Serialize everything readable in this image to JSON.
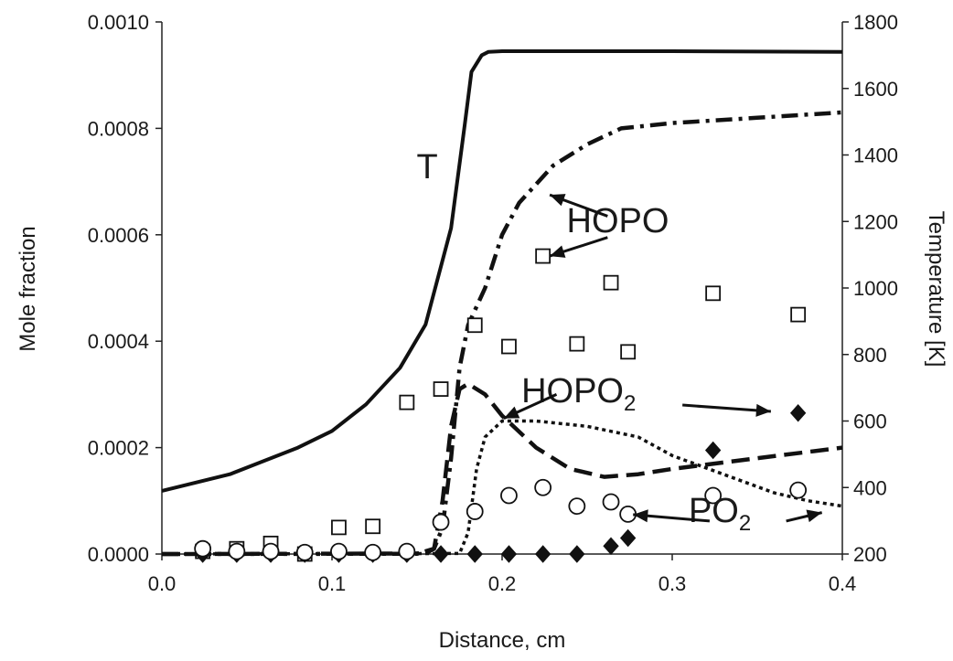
{
  "chart_data": {
    "type": "line",
    "title": "",
    "xlabel": "Distance, cm",
    "ylabel": "Mole fraction",
    "y2label": "Temperature [K]",
    "xlim": [
      0,
      0.4
    ],
    "ylim": [
      0,
      0.001
    ],
    "y2lim": [
      200,
      1800
    ],
    "x_ticks": [
      "0.0",
      "0.1",
      "0.2",
      "0.3",
      "0.4"
    ],
    "y_ticks": [
      "0.0000",
      "0.0002",
      "0.0004",
      "0.0006",
      "0.0008",
      "0.0010"
    ],
    "y2_ticks": [
      "200",
      "400",
      "600",
      "800",
      "1000",
      "1200",
      "1400",
      "1600",
      "1800"
    ],
    "grid": false,
    "legend": "none",
    "series": [
      {
        "kind": "line",
        "style": "solid",
        "axis": "right",
        "points": [
          [
            0,
            390
          ],
          [
            0.04,
            440
          ],
          [
            0.08,
            520
          ],
          [
            0.1,
            570
          ],
          [
            0.12,
            650
          ],
          [
            0.14,
            760
          ],
          [
            0.155,
            890
          ],
          [
            0.17,
            1180
          ],
          [
            0.178,
            1490
          ],
          [
            0.182,
            1650
          ],
          [
            0.188,
            1700
          ],
          [
            0.192,
            1710
          ],
          [
            0.2,
            1712
          ],
          [
            0.3,
            1712
          ],
          [
            0.4,
            1710
          ]
        ]
      },
      {
        "kind": "line",
        "style": "dash-dot",
        "axis": "left",
        "points": [
          [
            0,
            0
          ],
          [
            0.15,
            5e-07
          ],
          [
            0.16,
            1e-05
          ],
          [
            0.165,
            5e-05
          ],
          [
            0.17,
            0.00018
          ],
          [
            0.175,
            0.00035
          ],
          [
            0.18,
            0.00043
          ],
          [
            0.19,
            0.0005
          ],
          [
            0.2,
            0.0006
          ],
          [
            0.21,
            0.00066
          ],
          [
            0.23,
            0.00073
          ],
          [
            0.25,
            0.00077
          ],
          [
            0.27,
            0.0008
          ],
          [
            0.3,
            0.00081
          ],
          [
            0.35,
            0.00082
          ],
          [
            0.4,
            0.00083
          ]
        ]
      },
      {
        "kind": "line",
        "style": "dashed",
        "axis": "left",
        "points": [
          [
            0,
            0
          ],
          [
            0.155,
            1e-06
          ],
          [
            0.16,
            1e-05
          ],
          [
            0.165,
            0.0001
          ],
          [
            0.17,
            0.00024
          ],
          [
            0.175,
            0.00031
          ],
          [
            0.18,
            0.00032
          ],
          [
            0.19,
            0.0003
          ],
          [
            0.2,
            0.00026
          ],
          [
            0.22,
            0.0002
          ],
          [
            0.24,
            0.00016
          ],
          [
            0.26,
            0.000145
          ],
          [
            0.28,
            0.00015
          ],
          [
            0.3,
            0.00016
          ],
          [
            0.35,
            0.00018
          ],
          [
            0.4,
            0.0002
          ]
        ]
      },
      {
        "kind": "line",
        "style": "dotted",
        "axis": "left",
        "points": [
          [
            0,
            0
          ],
          [
            0.175,
            1e-06
          ],
          [
            0.18,
            4e-05
          ],
          [
            0.185,
            0.00016
          ],
          [
            0.19,
            0.00022
          ],
          [
            0.2,
            0.00025
          ],
          [
            0.22,
            0.00025
          ],
          [
            0.25,
            0.00024
          ],
          [
            0.28,
            0.00022
          ],
          [
            0.3,
            0.000185
          ],
          [
            0.33,
            0.00015
          ],
          [
            0.36,
            0.000115
          ],
          [
            0.38,
            0.0001
          ],
          [
            0.4,
            9e-05
          ]
        ]
      },
      {
        "kind": "scatter",
        "marker": "open-square",
        "axis": "left",
        "points": [
          [
            0.024,
            5e-06
          ],
          [
            0.044,
            1e-05
          ],
          [
            0.064,
            2e-05
          ],
          [
            0.084,
            0
          ],
          [
            0.104,
            5e-05
          ],
          [
            0.124,
            5.2e-05
          ],
          [
            0.144,
            0.000285
          ],
          [
            0.164,
            0.00031
          ],
          [
            0.184,
            0.00043
          ],
          [
            0.204,
            0.00039
          ],
          [
            0.224,
            0.00056
          ],
          [
            0.244,
            0.000395
          ],
          [
            0.264,
            0.00051
          ],
          [
            0.274,
            0.00038
          ],
          [
            0.324,
            0.00049
          ],
          [
            0.374,
            0.00045
          ]
        ]
      },
      {
        "kind": "scatter",
        "marker": "filled-diamond",
        "axis": "left",
        "points": [
          [
            0.024,
            0
          ],
          [
            0.044,
            0
          ],
          [
            0.064,
            0
          ],
          [
            0.084,
            0
          ],
          [
            0.104,
            0
          ],
          [
            0.124,
            0
          ],
          [
            0.144,
            0
          ],
          [
            0.164,
            0
          ],
          [
            0.184,
            0
          ],
          [
            0.204,
            0
          ],
          [
            0.224,
            0
          ],
          [
            0.244,
            0
          ],
          [
            0.264,
            1.5e-05
          ],
          [
            0.274,
            3e-05
          ],
          [
            0.324,
            0.000195
          ],
          [
            0.374,
            0.000265
          ]
        ]
      },
      {
        "kind": "scatter",
        "marker": "open-circle",
        "axis": "left",
        "points": [
          [
            0.024,
            1e-05
          ],
          [
            0.044,
            5e-06
          ],
          [
            0.064,
            5e-06
          ],
          [
            0.084,
            3e-06
          ],
          [
            0.104,
            5e-06
          ],
          [
            0.124,
            3e-06
          ],
          [
            0.144,
            5e-06
          ],
          [
            0.164,
            6e-05
          ],
          [
            0.184,
            8e-05
          ],
          [
            0.204,
            0.00011
          ],
          [
            0.224,
            0.000125
          ],
          [
            0.244,
            9e-05
          ],
          [
            0.264,
            9.8e-05
          ],
          [
            0.274,
            7.5e-05
          ],
          [
            0.324,
            0.00011
          ],
          [
            0.374,
            0.00012
          ]
        ]
      }
    ],
    "annotations": [
      {
        "id": "T",
        "text": "T",
        "sub": ""
      },
      {
        "id": "HOPO",
        "text": "HOPO",
        "sub": ""
      },
      {
        "id": "HOPO2",
        "text": "HOPO",
        "sub": "2"
      },
      {
        "id": "PO2",
        "text": "PO",
        "sub": "2"
      }
    ]
  }
}
